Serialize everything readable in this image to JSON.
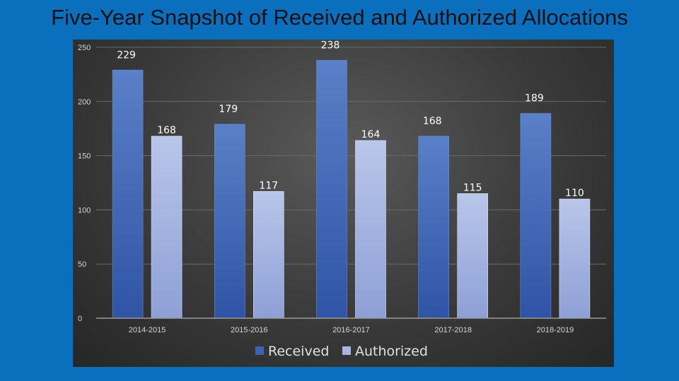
{
  "page": {
    "title": "Five-Year Snapshot of Received and Authorized Allocations"
  },
  "chart_data": {
    "type": "bar",
    "title": "Five-Year Snapshot of Received and Authorized Allocations",
    "xlabel": "",
    "ylabel": "",
    "categories": [
      "2014-2015",
      "2015-2016",
      "2016-2017",
      "2017-2018",
      "2018-2019"
    ],
    "series": [
      {
        "name": "Received",
        "values": [
          229,
          179,
          238,
          168,
          189
        ],
        "color": "#4a74c4"
      },
      {
        "name": "Authorized",
        "values": [
          168,
          117,
          164,
          115,
          110
        ],
        "color": "#a7b6e0"
      }
    ],
    "ylim": [
      0,
      250
    ],
    "yticks": [
      0,
      50,
      100,
      150,
      200,
      250
    ],
    "grid": true,
    "legend_position": "bottom"
  }
}
